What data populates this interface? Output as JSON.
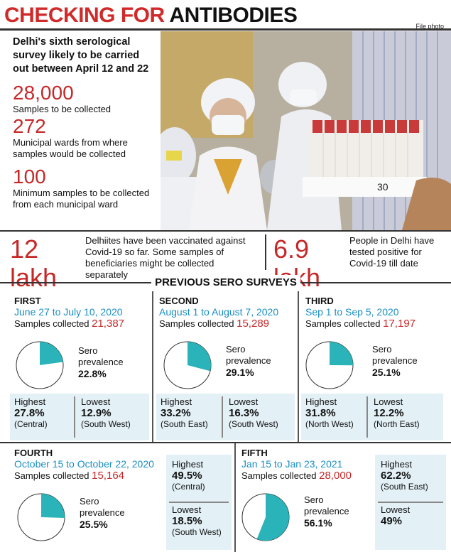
{
  "headline": {
    "part1": "CHECKING FOR",
    "part2": "ANTIBODIES"
  },
  "file_photo": "File photo",
  "photo_tube_label": "30",
  "intro": "Delhi's sixth serological survey likely to be carried out between April 12 and 22",
  "stats": [
    {
      "value": "28,000",
      "label": "Samples to be collected"
    },
    {
      "value": "272",
      "label": "Municipal wards from where samples would be collected"
    },
    {
      "value": "100",
      "label": "Minimum samples to be collected from each municipal ward"
    }
  ],
  "lakh": [
    {
      "value": "12 lakh",
      "desc": "Delhiites have been vaccinated against Covid-19 so far. Some samples of beneficiaries might be collected separately"
    },
    {
      "value": "6.9 lakh",
      "desc": "People in Delhi have tested positive for Covid-19 till date"
    }
  ],
  "banner": "PREVIOUS SERO SURVEYS",
  "samples_label": "Samples collected",
  "sero_label": "Sero prevalence",
  "highest_label": "Highest",
  "lowest_label": "Lowest",
  "accent_color": "#2ab3b8",
  "surveys": [
    {
      "name": "FIRST",
      "dates": "June 27 to July 10, 2020",
      "samples": "21,387",
      "prevalence": "22.8%",
      "prevalence_pct": 22.8,
      "highest": "27.8%",
      "highest_region": "(Central)",
      "lowest": "12.9%",
      "lowest_region": "(South West)"
    },
    {
      "name": "SECOND",
      "dates": "August 1 to August 7, 2020",
      "samples": "15,289",
      "prevalence": "29.1%",
      "prevalence_pct": 29.1,
      "highest": "33.2%",
      "highest_region": "(South East)",
      "lowest": "16.3%",
      "lowest_region": "(South West)"
    },
    {
      "name": "THIRD",
      "dates": "Sep 1 to Sep 5, 2020",
      "samples": "17,197",
      "prevalence": "25.1%",
      "prevalence_pct": 25.1,
      "highest": "31.8%",
      "highest_region": "(North West)",
      "lowest": "12.2%",
      "lowest_region": "(North East)"
    },
    {
      "name": "FOURTH",
      "dates": "October 15 to October 22, 2020",
      "samples": "15,164",
      "prevalence": "25.5%",
      "prevalence_pct": 25.5,
      "highest": "49.5%",
      "highest_region": "(Central)",
      "lowest": "18.5%",
      "lowest_region": "(South West)"
    },
    {
      "name": "FIFTH",
      "dates": "Jan 15 to Jan 23, 2021",
      "samples": "28,000",
      "prevalence": "56.1%",
      "prevalence_pct": 56.1,
      "highest": "62.2%",
      "highest_region": "(South East)",
      "lowest": "49%",
      "lowest_region": ""
    }
  ]
}
